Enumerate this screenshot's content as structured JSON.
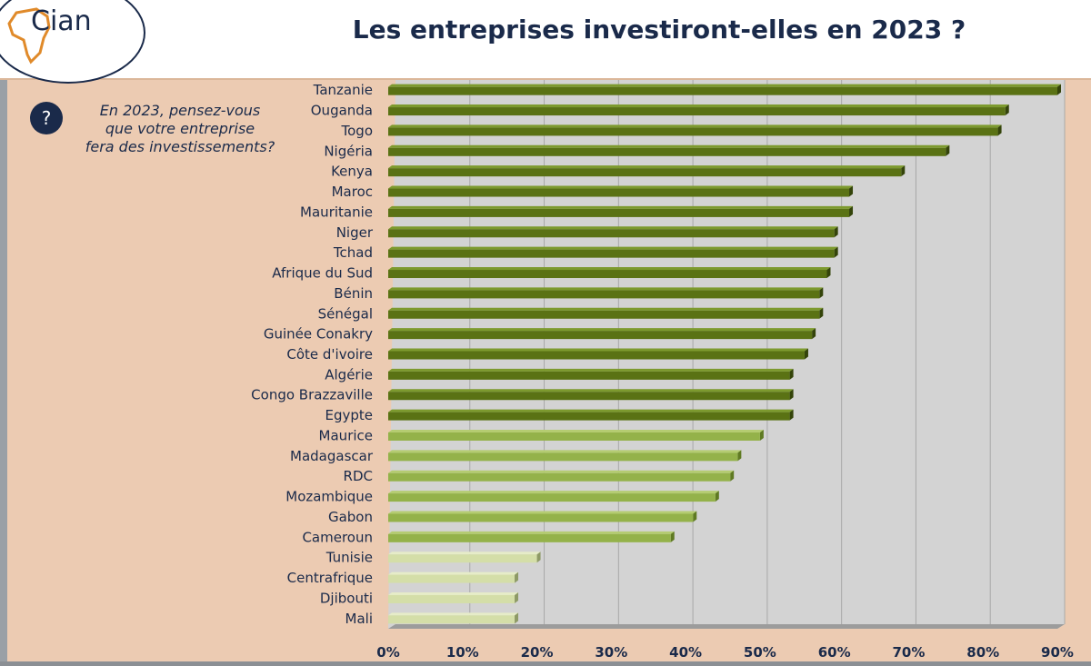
{
  "header": {
    "logo_text": "Cian",
    "title": "Les entreprises investiront-elles en 2023 ?"
  },
  "question": {
    "icon": "question-icon",
    "mark": "?",
    "text_lines": [
      "En 2023, pensez-vous",
      "que votre entreprise",
      "fera des investissements?"
    ]
  },
  "colors": {
    "dark_green": "#5a7214",
    "mid_green": "#94b24a",
    "light_green": "#d4dea8",
    "plot_bg": "#d3d3d3",
    "text": "#1a2a4a"
  },
  "chart_data": {
    "type": "bar",
    "orientation": "horizontal",
    "categories": [
      "Tanzanie",
      "Ouganda",
      "Togo",
      "Nigéria",
      "Kenya",
      "Maroc",
      "Mauritanie",
      "Niger",
      "Tchad",
      "Afrique du Sud",
      "Bénin",
      "Sénégal",
      "Guinée Conakry",
      "Côte d'ivoire",
      "Algérie",
      "Congo Brazzaville",
      "Egypte",
      "Maurice",
      "Madagascar",
      "RDC",
      "Mozambique",
      "Gabon",
      "Cameroun",
      "Tunisie",
      "Centrafrique",
      "Djibouti",
      "Mali"
    ],
    "values": [
      90,
      83,
      82,
      75,
      69,
      62,
      62,
      60,
      60,
      59,
      58,
      58,
      57,
      56,
      54,
      54,
      54,
      50,
      47,
      46,
      44,
      41,
      38,
      20,
      17,
      17,
      17
    ],
    "groups": [
      "dark",
      "dark",
      "dark",
      "dark",
      "dark",
      "dark",
      "dark",
      "dark",
      "dark",
      "dark",
      "dark",
      "dark",
      "dark",
      "dark",
      "dark",
      "dark",
      "dark",
      "mid",
      "mid",
      "mid",
      "mid",
      "mid",
      "mid",
      "light",
      "light",
      "light",
      "light"
    ],
    "xlim": [
      0,
      90
    ],
    "xticks": [
      0,
      10,
      20,
      30,
      40,
      50,
      60,
      70,
      80,
      90
    ],
    "xtick_labels": [
      "0%",
      "10%",
      "20%",
      "30%",
      "40%",
      "50%",
      "60%",
      "70%",
      "80%",
      "90%"
    ],
    "grid": true
  }
}
